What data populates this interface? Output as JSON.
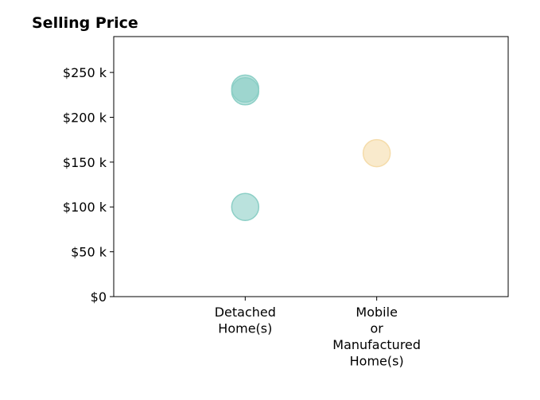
{
  "chart_data": {
    "type": "scatter",
    "title": "Selling Price",
    "xlabel": "",
    "ylabel": "",
    "categories": [
      [
        "Detached",
        "Home(s)"
      ],
      [
        "Mobile",
        "or",
        "Manufactured",
        "Home(s)"
      ]
    ],
    "xlim": [
      -1,
      2
    ],
    "ylim": [
      0,
      290000
    ],
    "yticks": [
      {
        "value": 0,
        "label": "$0"
      },
      {
        "value": 50000,
        "label": "$50 k"
      },
      {
        "value": 100000,
        "label": "$100 k"
      },
      {
        "value": 150000,
        "label": "$150 k"
      },
      {
        "value": 200000,
        "label": "$200 k"
      },
      {
        "value": 250000,
        "label": "$250 k"
      }
    ],
    "points": [
      {
        "category": 0,
        "y": 232000,
        "color": "#8ccfc6"
      },
      {
        "category": 0,
        "y": 229000,
        "color": "#8ccfc6"
      },
      {
        "category": 0,
        "y": 100000,
        "color": "#8ccfc6"
      },
      {
        "category": 1,
        "y": 160000,
        "color": "#f5dcaa"
      }
    ],
    "grid": false,
    "legend": "none"
  }
}
